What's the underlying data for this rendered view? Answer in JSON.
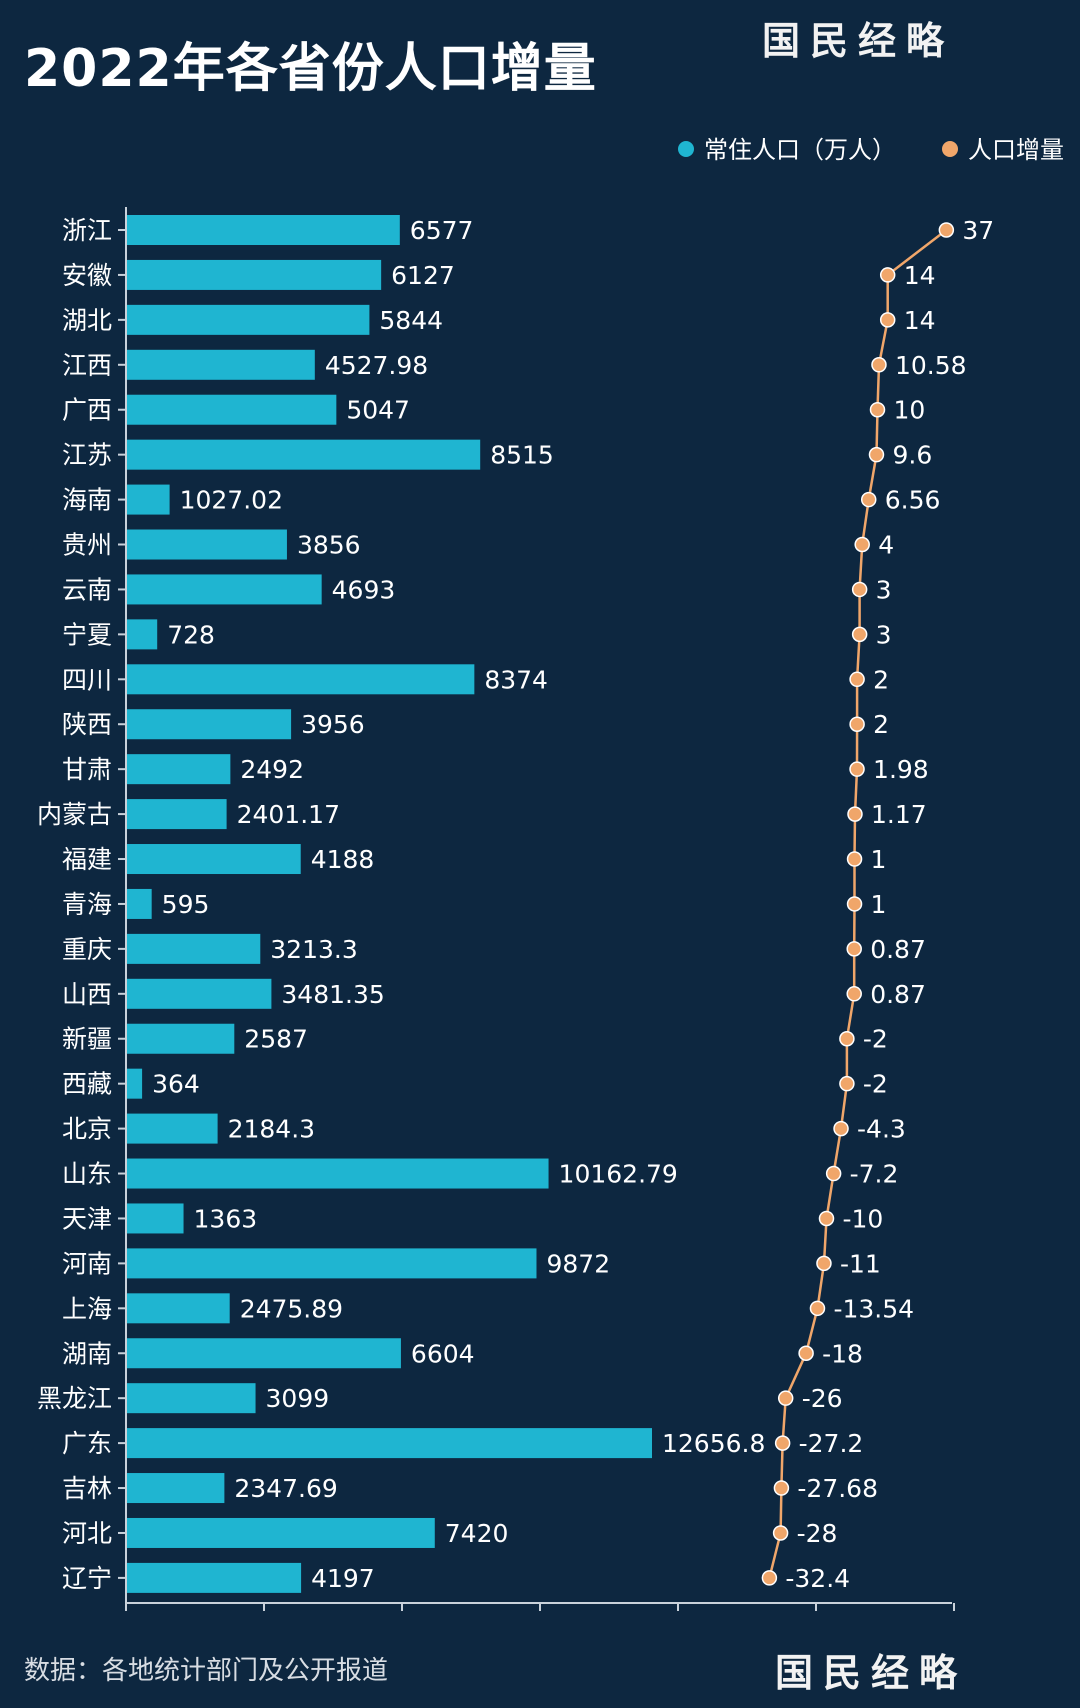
{
  "title": "2022年各省份人口增量",
  "brand": "国民经略",
  "source": "数据：各地统计部门及公开报道",
  "colors": {
    "background": "#0d2740",
    "bar": "#1fb5d1",
    "line": "#f0a66a",
    "text": "#ffffff",
    "axis": "#c9d2db"
  },
  "legend": [
    {
      "label": "常住人口（万人）",
      "color": "#1fb5d1"
    },
    {
      "label": "人口增量",
      "color": "#f0a66a"
    }
  ],
  "chart_data": {
    "type": "bar",
    "categories": [
      "浙江",
      "安徽",
      "湖北",
      "江西",
      "广西",
      "江苏",
      "海南",
      "贵州",
      "云南",
      "宁夏",
      "四川",
      "陕西",
      "甘肃",
      "内蒙古",
      "福建",
      "青海",
      "重庆",
      "山西",
      "新疆",
      "西藏",
      "北京",
      "山东",
      "天津",
      "河南",
      "上海",
      "湖南",
      "黑龙江",
      "广东",
      "吉林",
      "河北",
      "辽宁"
    ],
    "series": [
      {
        "name": "常住人口（万人）",
        "type": "bar",
        "values": [
          6577,
          6127,
          5844,
          4527.98,
          5047,
          8515,
          1027.02,
          3856,
          4693,
          728,
          8374,
          3956,
          2492,
          2401.17,
          4188,
          595,
          3213.3,
          3481.35,
          2587,
          364,
          2184.3,
          10162.79,
          1363,
          9872,
          2475.89,
          6604,
          3099,
          12656.8,
          2347.69,
          7420,
          4197
        ],
        "labels": [
          "6577",
          "6127",
          "5844",
          "4527.98",
          "5047",
          "8515",
          "1027.02",
          "3856",
          "4693",
          "728",
          "8374",
          "3956",
          "2492",
          "2401.17",
          "4188",
          "595",
          "3213.3",
          "3481.35",
          "2587",
          "364",
          "2184.3",
          "10162.79",
          "1363",
          "9872",
          "2475.89",
          "6604",
          "3099",
          "12656.8",
          "2347.69",
          "7420",
          "4197"
        ]
      },
      {
        "name": "人口增量",
        "type": "line",
        "values": [
          37,
          14,
          14,
          10.58,
          10,
          9.6,
          6.56,
          4,
          3,
          3,
          2,
          2,
          1.98,
          1.17,
          1,
          1,
          0.87,
          0.87,
          -2,
          -2,
          -4.3,
          -7.2,
          -10,
          -11,
          -13.54,
          -18,
          -26,
          -27.2,
          -27.68,
          -28,
          -32.4
        ],
        "labels": [
          "37",
          "14",
          "14",
          "10.58",
          "10",
          "9.6",
          "6.56",
          "4",
          "3",
          "3",
          "2",
          "2",
          "1.98",
          "1.17",
          "1",
          "1",
          "0.87",
          "0.87",
          "-2",
          "-2",
          "-4.3",
          "-7.2",
          "-10",
          "-11",
          "-13.54",
          "-18",
          "-26",
          "-27.2",
          "-27.68",
          "-28",
          "-32.4"
        ]
      }
    ],
    "legend_position": "top-right",
    "grid": false
  }
}
